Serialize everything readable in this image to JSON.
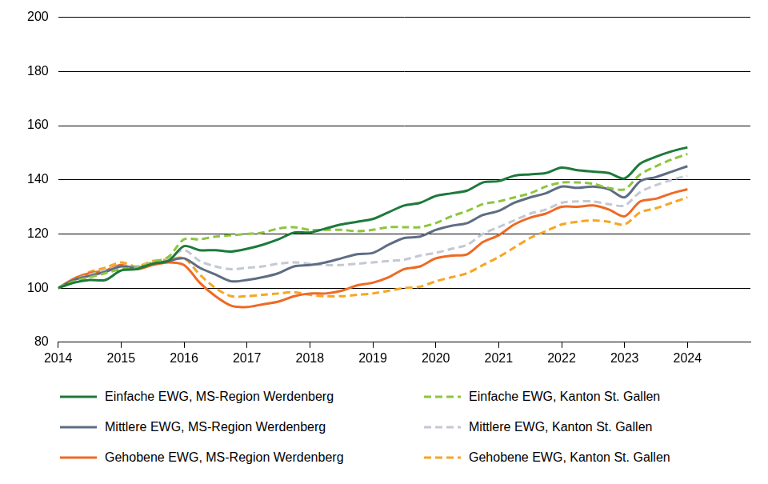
{
  "chart_data": {
    "type": "line",
    "x": [
      2014,
      2014.25,
      2014.5,
      2014.75,
      2015,
      2015.25,
      2015.5,
      2015.75,
      2016,
      2016.25,
      2016.5,
      2016.75,
      2017,
      2017.25,
      2017.5,
      2017.75,
      2018,
      2018.25,
      2018.5,
      2018.75,
      2019,
      2019.25,
      2019.5,
      2019.75,
      2020,
      2020.25,
      2020.5,
      2020.75,
      2021,
      2021.25,
      2021.5,
      2021.75,
      2022,
      2022.25,
      2022.5,
      2022.75,
      2023,
      2023.25,
      2023.5,
      2023.75,
      2024
    ],
    "xlim": [
      2014,
      2025
    ],
    "xticks": [
      2014,
      2015,
      2016,
      2017,
      2018,
      2019,
      2020,
      2021,
      2022,
      2023,
      2024
    ],
    "ylim": [
      80,
      200
    ],
    "yticks": [
      80,
      100,
      120,
      140,
      160,
      180,
      200
    ],
    "grid": true,
    "series": [
      {
        "name": "Einfache EWG, MS-Region Werdenberg",
        "color": "#1d7a3b",
        "line_style": "solid",
        "values": [
          100,
          102,
          103,
          103,
          106.5,
          107,
          109,
          110,
          115.5,
          114,
          114,
          113.5,
          114.5,
          116,
          118,
          120.5,
          120.5,
          122,
          123.5,
          124.5,
          125.5,
          128,
          130.5,
          131.5,
          134,
          135,
          136,
          139,
          139.5,
          141.5,
          142,
          142.5,
          144.5,
          143.5,
          143,
          142.5,
          140.5,
          146,
          148.5,
          150.5,
          152
        ]
      },
      {
        "name": "Einfache EWG, Kanton St. Gallen",
        "color": "#8cc63f",
        "line_style": "dashed",
        "values": [
          100,
          102.5,
          104,
          105.5,
          107,
          107.5,
          109.5,
          111.5,
          118,
          118,
          119,
          119.5,
          120,
          120.5,
          122,
          122.5,
          121.5,
          121.5,
          121.5,
          121,
          121.5,
          122.5,
          122.5,
          122.5,
          124,
          126.5,
          128.5,
          131,
          132,
          133.5,
          135,
          137.5,
          139,
          139,
          138.5,
          137,
          136.5,
          142,
          145,
          147.5,
          149.5
        ]
      },
      {
        "name": "Mittlere EWG, MS-Region Werdenberg",
        "color": "#5e6d84",
        "line_style": "solid",
        "values": [
          100,
          103,
          104.5,
          106,
          108,
          107.5,
          109,
          110,
          111,
          107.5,
          105,
          102.5,
          103,
          104,
          105.5,
          108,
          108.5,
          109.5,
          111,
          112.5,
          113,
          116,
          118.5,
          119,
          121.5,
          123,
          124,
          127,
          128.5,
          131.5,
          133.5,
          135,
          137.5,
          137,
          137.5,
          136.5,
          133.5,
          139.5,
          141,
          143,
          145
        ]
      },
      {
        "name": "Mittlere EWG, Kanton St. Gallen",
        "color": "#c3c8d4",
        "line_style": "dashed",
        "values": [
          100,
          103,
          105,
          106.5,
          108,
          108,
          109.5,
          111,
          114,
          110,
          108,
          107,
          107.5,
          108,
          109,
          109.5,
          109,
          108.5,
          108.5,
          109,
          109.5,
          110,
          110.5,
          112,
          113,
          114.5,
          116,
          120,
          122.5,
          125,
          127.5,
          129,
          131.5,
          132,
          132,
          131,
          130.5,
          135.5,
          138,
          140,
          141.5
        ]
      },
      {
        "name": "Gehobene EWG, MS-Region Werdenberg",
        "color": "#ee6a24",
        "line_style": "solid",
        "values": [
          100,
          103.5,
          105.5,
          106.5,
          108.5,
          107,
          108.5,
          109.5,
          108.5,
          102,
          97,
          93.5,
          93,
          94,
          95,
          97,
          98,
          98,
          99,
          101,
          102,
          104,
          107,
          108,
          111,
          112,
          112.5,
          117,
          119.5,
          123.5,
          126,
          127.5,
          130,
          130,
          130.5,
          129,
          126.5,
          132,
          133,
          135,
          136.5
        ]
      },
      {
        "name": "Gehobene EWG, Kanton St. Gallen",
        "color": "#f6a623",
        "line_style": "dashed",
        "values": [
          100,
          103,
          106,
          107.5,
          109.5,
          108,
          110,
          110.5,
          111,
          105,
          100,
          97,
          97,
          97.5,
          98,
          98.5,
          97.5,
          97,
          97,
          97.5,
          98,
          99,
          100,
          100.5,
          102.5,
          104,
          105.5,
          108.5,
          111.5,
          115,
          118.5,
          121,
          123.5,
          124.5,
          125,
          124.5,
          123.5,
          128,
          129.5,
          131.5,
          133.5
        ]
      }
    ]
  }
}
